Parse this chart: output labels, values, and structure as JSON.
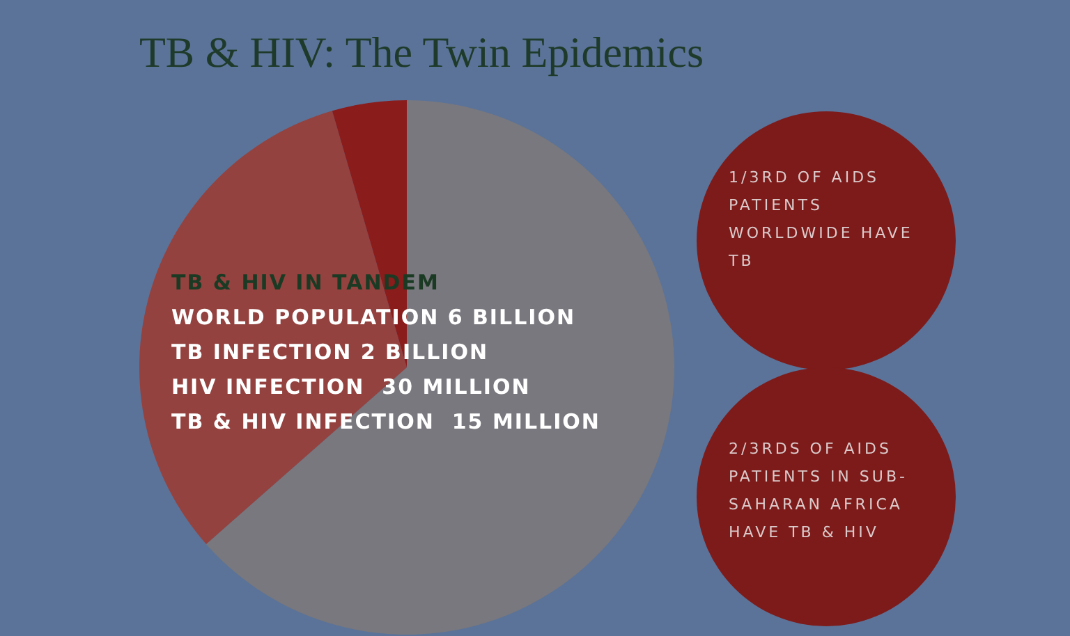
{
  "chart_data": {
    "type": "pie",
    "title": "TB & HIV: The Twin Epidemics",
    "categories": [
      null,
      null,
      null
    ],
    "values": [
      63.5,
      32,
      4.5
    ],
    "colors": [
      "#78787e",
      "#94423f",
      "#8a1c1c"
    ],
    "annotations": [
      "TB & HIV IN TANDEM",
      "WORLD POPULATION 6 BILLION",
      "TB INFECTION 2 BILLION",
      "HIV INFECTION  30 MILLION",
      "TB & HIV INFECTION  15 MILLION",
      "1/3RD OF AIDS PATIENTS WORLDWIDE HAVE TB",
      "2/3RDS OF AIDS PATIENTS IN SUB-SAHARAN AFRICA HAVE TB & HIV"
    ]
  }
}
